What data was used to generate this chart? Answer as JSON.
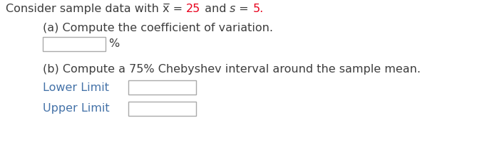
{
  "bg_color": "#ffffff",
  "text_dark": "#3d3d3d",
  "text_red": "#e8001c",
  "text_blue": "#4472a8",
  "font_family": "DejaVu Sans",
  "font_size": 11.5,
  "line1_segments": [
    {
      "t": "Consider sample data with x̅ = ",
      "c": "#3d3d3d",
      "s": "normal"
    },
    {
      "t": "25",
      "c": "#e8001c",
      "s": "normal"
    },
    {
      "t": " and ",
      "c": "#3d3d3d",
      "s": "normal"
    },
    {
      "t": "s",
      "c": "#3d3d3d",
      "s": "italic"
    },
    {
      "t": " = ",
      "c": "#3d3d3d",
      "s": "normal"
    },
    {
      "t": "5.",
      "c": "#e8001c",
      "s": "normal"
    }
  ],
  "line2": "(a) Compute the coefficient of variation.",
  "line3": "(b) Compute a 75% Chebyshev interval around the sample mean.",
  "lower_label": "Lower Limit",
  "upper_label": "Upper Limit",
  "pct_label": "%"
}
